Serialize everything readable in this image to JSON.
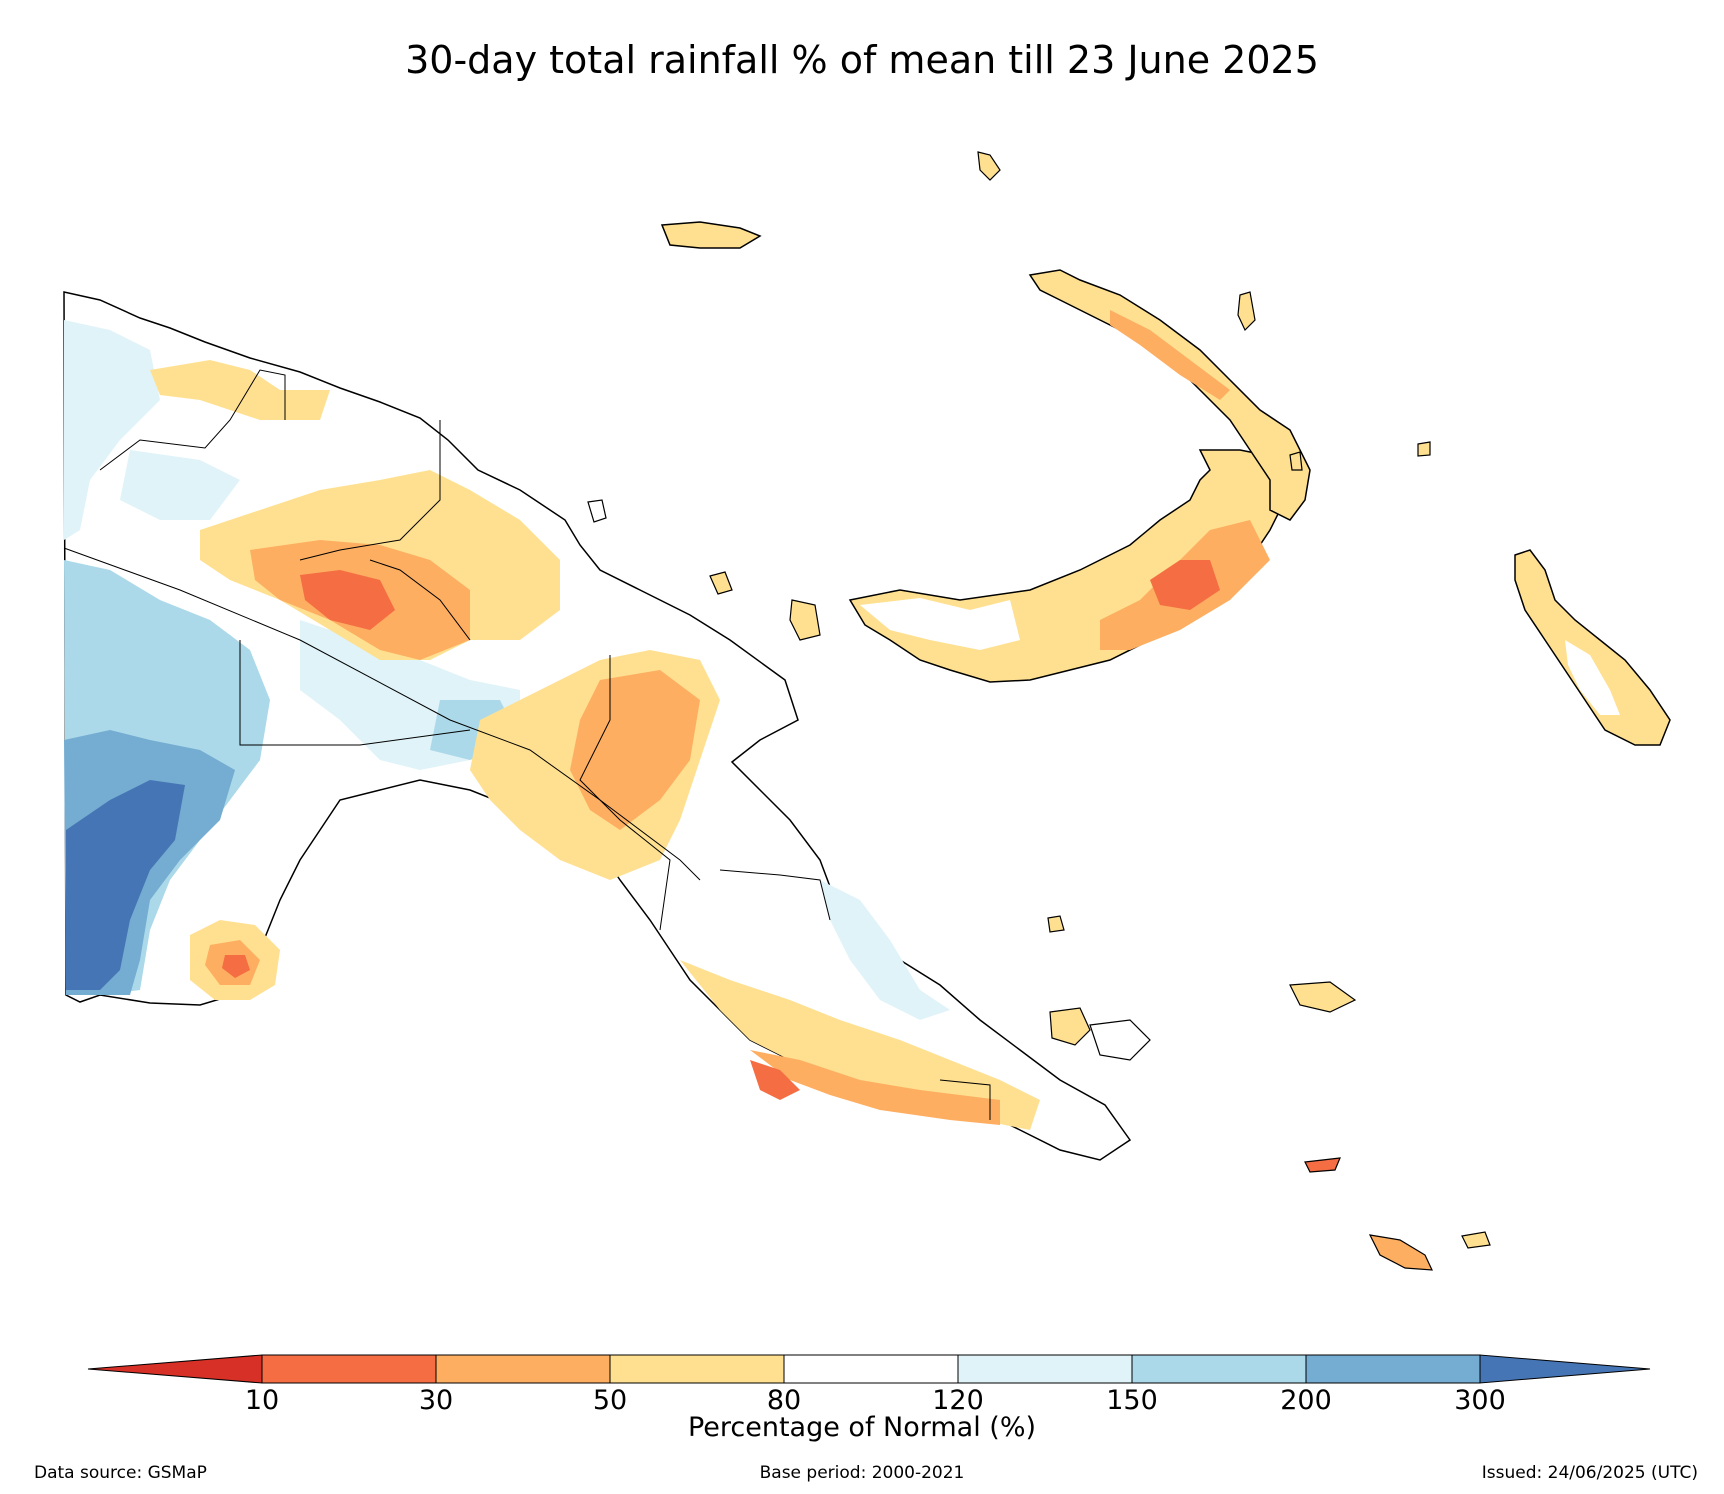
{
  "title": "30-day total rainfall % of mean till 23 June 2025",
  "colorbar": {
    "label": "Percentage of Normal (%)",
    "ticks": [
      "10",
      "30",
      "50",
      "80",
      "120",
      "150",
      "200",
      "300"
    ],
    "colors": [
      "#d73027",
      "#f46d43",
      "#fdae61",
      "#fee090",
      "#ffffff",
      "#e0f3f8",
      "#abd9e9",
      "#74add1",
      "#4575b4"
    ]
  },
  "footer": {
    "source": "Data source: GSMaP",
    "base_period": "Base period: 2000-2021",
    "issued": "Issued: 24/06/2025 (UTC)"
  },
  "map": {
    "region": "Papua New Guinea",
    "outline_color": "#000000",
    "land_default": "#ffffff"
  }
}
